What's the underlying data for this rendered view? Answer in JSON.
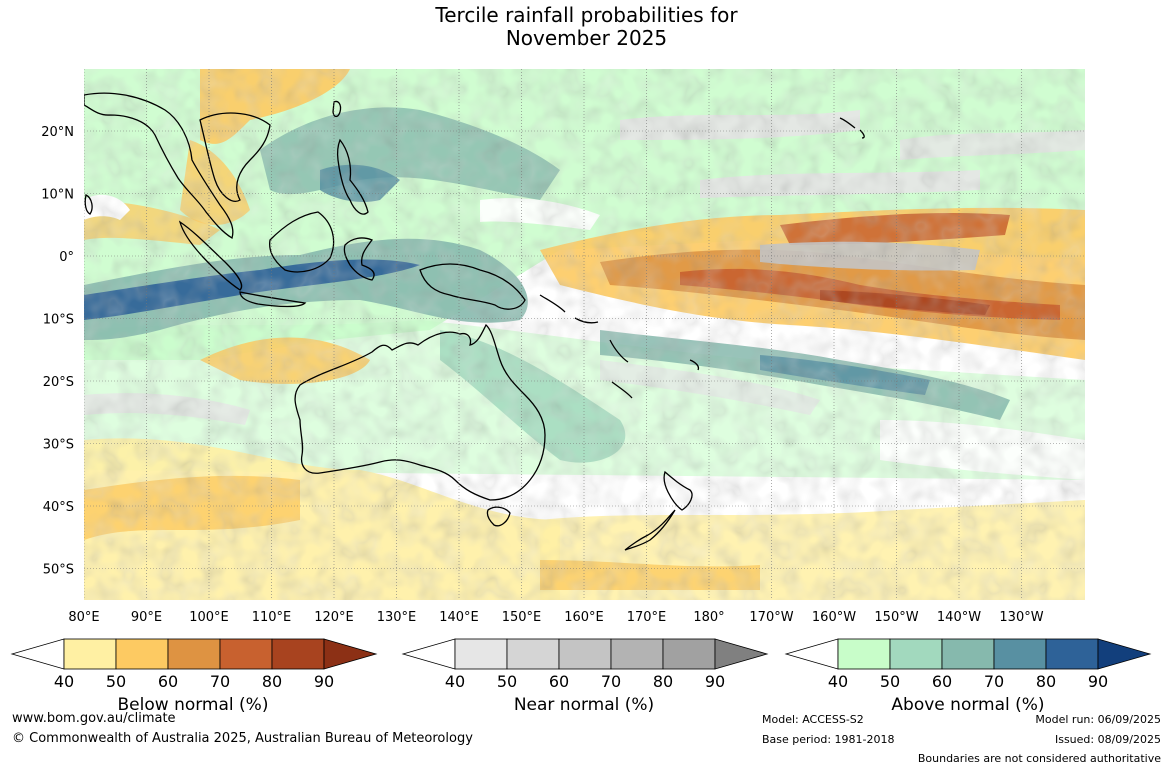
{
  "title_line1": "Tercile rainfall probabilities for",
  "title_line2": "November 2025",
  "lat_labels": [
    "20°N",
    "10°N",
    "0°",
    "10°S",
    "20°S",
    "30°S",
    "40°S",
    "50°S"
  ],
  "lat_values": [
    20,
    10,
    0,
    -10,
    -20,
    -30,
    -40,
    -50
  ],
  "lon_labels": [
    "80°E",
    "90°E",
    "100°E",
    "110°E",
    "120°E",
    "130°E",
    "140°E",
    "150°E",
    "160°E",
    "170°E",
    "180°",
    "170°W",
    "160°W",
    "150°W",
    "140°W",
    "130°W"
  ],
  "lon_values": [
    80,
    90,
    100,
    110,
    120,
    130,
    140,
    150,
    160,
    170,
    180,
    190,
    200,
    210,
    220,
    230
  ],
  "colorbars": [
    {
      "id": "below",
      "caption": "Below normal (%)",
      "ticks": [
        "40",
        "50",
        "60",
        "70",
        "80",
        "90"
      ],
      "under_color": "#ffffff",
      "colors": [
        "#fff0a3",
        "#fdca62",
        "#de9342",
        "#c8612f",
        "#a8431f"
      ],
      "over_color": "#8c3015"
    },
    {
      "id": "near",
      "caption": "Near normal (%)",
      "ticks": [
        "40",
        "50",
        "60",
        "70",
        "80",
        "90"
      ],
      "under_color": "#ffffff",
      "colors": [
        "#e6e6e6",
        "#d5d5d5",
        "#c4c4c4",
        "#b3b3b3",
        "#a1a1a1"
      ],
      "over_color": "#808080"
    },
    {
      "id": "above",
      "caption": "Above normal (%)",
      "ticks": [
        "40",
        "50",
        "60",
        "70",
        "80",
        "90"
      ],
      "under_color": "#ffffff",
      "colors": [
        "#c8fdc9",
        "#a2d9be",
        "#86b9ad",
        "#5890a2",
        "#2e6298"
      ],
      "over_color": "#123f7c"
    }
  ],
  "footer": {
    "website": "www.bom.gov.au/climate",
    "copyright": "© Commonwealth of Australia 2025, Australian Bureau of Meteorology",
    "model": "Model: ACCESS-S2",
    "base_period": "Base period: 1981-2018",
    "model_run": "Model run: 06/09/2025",
    "issued": "Issued: 08/09/2025",
    "disclaimer": "Boundaries are not considered authoritative"
  }
}
